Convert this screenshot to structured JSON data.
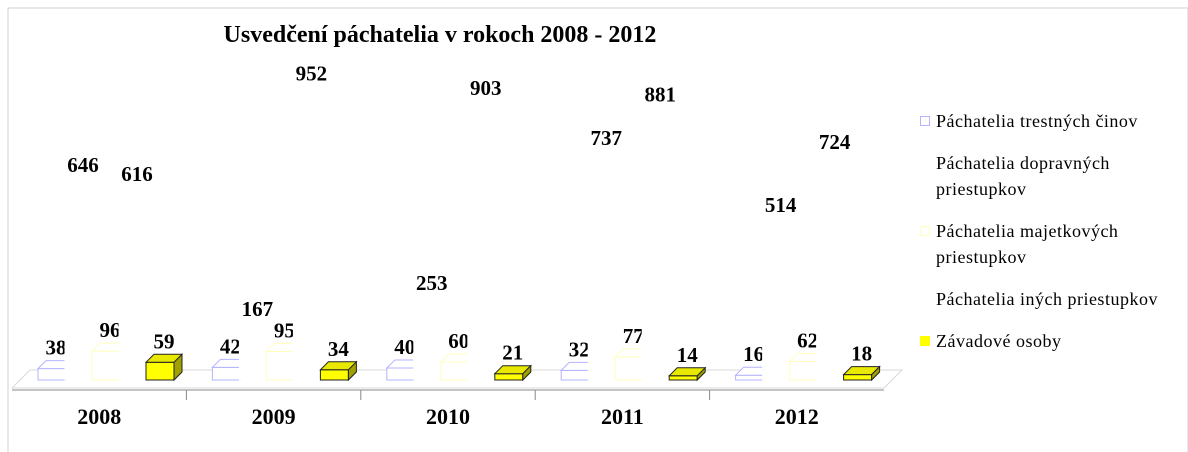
{
  "chart_data": {
    "type": "bar3d",
    "title": "Usvedčení páchatelia v rokoch 2008 - 2012",
    "categories": [
      "2008",
      "2009",
      "2010",
      "2011",
      "2012"
    ],
    "ylim": [
      0,
      1000
    ],
    "series": [
      {
        "name": "Páchatelia trestných činov",
        "color": "#b4b4ff",
        "values": [
          38,
          42,
          40,
          32,
          16
        ]
      },
      {
        "name": "Páchatelia dopravných priestupkov",
        "color": "#ffffff",
        "values": [
          646,
          167,
          253,
          737,
          514
        ]
      },
      {
        "name": "Páchatelia majetkových priestupkov",
        "color": "#ffffc0",
        "values": [
          96,
          95,
          60,
          77,
          62
        ]
      },
      {
        "name": "Páchatelia iných priestupkov",
        "color": "#ffffff",
        "values": [
          616,
          952,
          903,
          881,
          724
        ]
      },
      {
        "name": "Závadové osoby",
        "color": "#ffff00",
        "values": [
          59,
          34,
          21,
          14,
          18
        ]
      }
    ]
  }
}
